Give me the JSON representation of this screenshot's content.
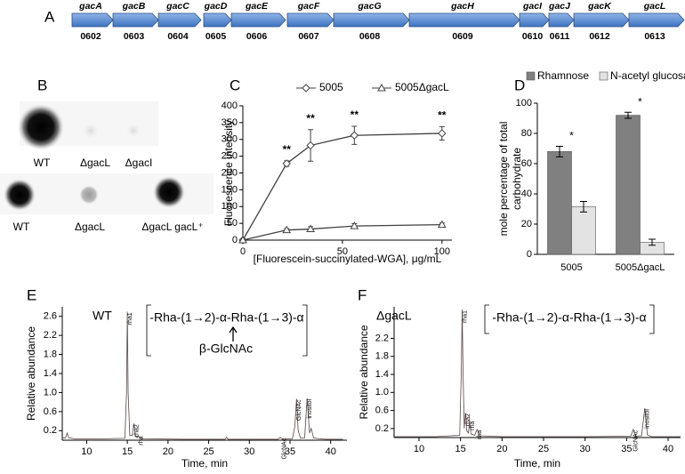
{
  "panel_labels": [
    "A",
    "B",
    "C",
    "D",
    "E",
    "F"
  ],
  "gene_map": {
    "genes": [
      {
        "name": "gacA",
        "locus": "0602"
      },
      {
        "name": "gacB",
        "locus": "0603"
      },
      {
        "name": "gacC",
        "locus": "0604"
      },
      {
        "name": "gacD",
        "locus": "0605"
      },
      {
        "name": "gacE",
        "locus": "0606"
      },
      {
        "name": "gacF",
        "locus": "0607"
      },
      {
        "name": "gacG",
        "locus": "0608"
      },
      {
        "name": "gacH",
        "locus": "0609"
      },
      {
        "name": "gacI",
        "locus": "0610"
      },
      {
        "name": "gacJ",
        "locus": "0611"
      },
      {
        "name": "gacK",
        "locus": "0612"
      },
      {
        "name": "gacL",
        "locus": "0613"
      }
    ]
  },
  "blots": {
    "rows": [
      [
        "WT",
        "ΔgacL",
        "ΔgacI"
      ],
      [
        "WT",
        "ΔgacL",
        "ΔgacL gacL⁺"
      ]
    ]
  },
  "chart_data": [
    {
      "type": "line",
      "xlabel": "[Fluorescein-succinylated-WGA], μg/mL",
      "ylabel": "Fluorescence intensity",
      "x": [
        0,
        22,
        34,
        56,
        100
      ],
      "xlim": [
        0,
        105
      ],
      "xticks": [
        0,
        50,
        100
      ],
      "ylim": [
        0,
        400
      ],
      "yticks": [
        0,
        50,
        100,
        150,
        200,
        250,
        300,
        350,
        400
      ],
      "legend": "top",
      "series": [
        {
          "name": "5005",
          "color": "#404040",
          "marker": "diamond",
          "values": [
            0,
            228,
            282,
            312,
            318
          ],
          "errors": [
            0,
            8,
            47,
            27,
            20
          ],
          "point_labels": [
            null,
            "**",
            "**",
            "**",
            "**"
          ]
        },
        {
          "name": "5005ΔgacL",
          "color": "#404040",
          "marker": "triangle",
          "values": [
            0,
            30,
            33,
            42,
            46
          ],
          "errors": [
            0,
            4,
            7,
            7,
            5
          ]
        }
      ]
    },
    {
      "type": "bar",
      "ylabel": [
        "mole percentage of total",
        "carbohydrate"
      ],
      "categories": [
        "5005",
        "5005ΔgacL"
      ],
      "ylim": [
        0,
        100
      ],
      "yticks": [
        0,
        20,
        40,
        60,
        80,
        100
      ],
      "legend": "top",
      "annotations": [
        "*",
        "*"
      ],
      "series": [
        {
          "name": "Rhamnose",
          "color": "#808080",
          "values": [
            68,
            92
          ],
          "errors": [
            3.5,
            2
          ]
        },
        {
          "name": "N-acetyl glucosamine",
          "color": "#e3e3e3",
          "values": [
            31.5,
            8
          ],
          "errors": [
            3.5,
            2
          ]
        }
      ]
    },
    {
      "type": "line",
      "xlabel": "Time, min",
      "ylabel": "Relative abundance",
      "strain": "WT",
      "structure": "-Rha-(1→2)-α-Rha-(1→3)-α",
      "branch": "β-GlcNAc",
      "xlim": [
        7,
        42
      ],
      "xticks": [
        10,
        15,
        20,
        25,
        30,
        35,
        40
      ],
      "ylim": [
        0,
        2.8
      ],
      "yticks": [
        0.2,
        0.6,
        {
          "value": 1,
          "label": "1.0"
        },
        1.4,
        1.8,
        2.2,
        2.6
      ],
      "x": [
        7,
        7.4,
        7.6,
        7.8,
        8.5,
        12,
        14.7,
        14.9,
        15.0,
        15.1,
        15.3,
        15.6,
        15.8,
        16.0,
        16.2,
        16.35,
        16.5,
        17,
        22,
        27,
        27.2,
        27.4,
        30,
        33.5,
        33.8,
        34.1,
        35.3,
        35.6,
        35.8,
        36.0,
        36.3,
        36.8,
        37.1,
        37.4,
        37.6,
        37.9,
        38.5,
        39.5,
        41.5
      ],
      "series": [
        {
          "color": "#5a4444",
          "values": [
            0.05,
            0.05,
            0.15,
            0.05,
            0.03,
            0.03,
            0.04,
            1.0,
            2.7,
            1.0,
            0.1,
            0.1,
            0.35,
            0.08,
            0.05,
            0.1,
            0.04,
            0.03,
            0.02,
            0.02,
            0.06,
            0.02,
            0.02,
            0.02,
            0.06,
            0.02,
            0.03,
            0.3,
            0.87,
            0.2,
            0.04,
            0.05,
            0.88,
            0.15,
            0.25,
            0.05,
            0.03,
            0.02,
            0.02
          ]
        }
      ],
      "peaks": [
        {
          "label": "rha1",
          "x": 15.0,
          "y": 2.7
        },
        {
          "label": "rha2",
          "x": 15.8,
          "y": 0.35
        },
        {
          "label": "rha",
          "x": 16.35,
          "y": 0.1
        },
        {
          "label": "GlcNAc",
          "x": 34.0,
          "y": 0.06
        },
        {
          "label": "GlcNAc",
          "x": 35.8,
          "y": 0.87
        },
        {
          "label": "inositol",
          "x": 37.1,
          "y": 0.88
        }
      ]
    },
    {
      "type": "line",
      "xlabel": "Time, min",
      "ylabel": "Relative abundance",
      "strain": "ΔgacL",
      "structure": "-Rha-(1→2)-α-Rha-(1→3)-α",
      "xlim": [
        7,
        41.5
      ],
      "xticks": [
        10,
        15,
        20,
        25,
        30,
        35,
        40
      ],
      "ylim": [
        0,
        2.9
      ],
      "yticks": [
        0.2,
        0.6,
        {
          "value": 1,
          "label": "1.0"
        },
        1.4,
        1.8,
        2.2
      ],
      "x": [
        7,
        9,
        12,
        14.9,
        15.1,
        15.2,
        15.3,
        15.45,
        15.6,
        15.75,
        15.95,
        16.1,
        16.25,
        16.7,
        17.0,
        17.3,
        20,
        25,
        30,
        35.5,
        35.8,
        36.1,
        36.8,
        37.2,
        37.5,
        38,
        40,
        41.5
      ],
      "series": [
        {
          "color": "#5a4444",
          "values": [
            0.02,
            0.02,
            0.02,
            0.05,
            1.5,
            2.84,
            1.5,
            0.2,
            0.55,
            0.15,
            0.1,
            0.38,
            0.08,
            0.05,
            0.18,
            0.04,
            0.02,
            0.02,
            0.02,
            0.03,
            0.18,
            0.03,
            0.04,
            0.65,
            0.06,
            0.02,
            0.02,
            0.02
          ]
        }
      ],
      "peaks": [
        {
          "label": "rha1",
          "x": 15.2,
          "y": 2.84
        },
        {
          "label": "rha2",
          "x": 15.6,
          "y": 0.55
        },
        {
          "label": "rha",
          "x": 16.1,
          "y": 0.38
        },
        {
          "label": "rha",
          "x": 17.0,
          "y": 0.18
        },
        {
          "label": "GlcNAc",
          "x": 35.8,
          "y": 0.18
        },
        {
          "label": "inositol",
          "x": 37.2,
          "y": 0.65
        }
      ]
    }
  ]
}
